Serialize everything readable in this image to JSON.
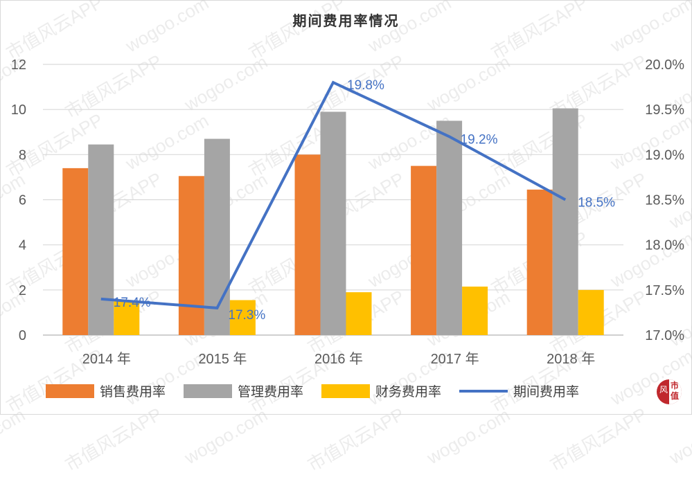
{
  "title": "期间费用率情况",
  "left_axis": {
    "ticks": [
      "12",
      "10",
      "8",
      "6",
      "4",
      "2",
      "0"
    ]
  },
  "right_axis": {
    "ticks": [
      "20.0%",
      "19.5%",
      "19.0%",
      "18.5%",
      "18.0%",
      "17.5%",
      "17.0%"
    ]
  },
  "x_labels": [
    "2014 年",
    "2015 年",
    "2016 年",
    "2017 年",
    "2018 年"
  ],
  "data_labels": [
    "17.4%",
    "17.3%",
    "19.8%",
    "19.2%",
    "18.5%"
  ],
  "legend": {
    "items": [
      {
        "label": "销售费用率",
        "color": "#ed7d31",
        "kind": "bar"
      },
      {
        "label": "管理费用率",
        "color": "#a5a5a5",
        "kind": "bar"
      },
      {
        "label": "财务费用率",
        "color": "#ffc000",
        "kind": "bar"
      },
      {
        "label": "期间费用率",
        "color": "#4472c4",
        "kind": "line"
      }
    ]
  },
  "logo": {
    "left": "风",
    "right": "市值"
  },
  "watermarks": [
    "wogoo.com",
    "市值风云APP"
  ],
  "chart_data": {
    "type": "bar",
    "title": "期间费用率情况",
    "categories": [
      "2014 年",
      "2015 年",
      "2016 年",
      "2017 年",
      "2018 年"
    ],
    "series": [
      {
        "name": "销售费用率",
        "type": "bar",
        "axis": "left",
        "color": "#ed7d31",
        "values": [
          7.4,
          7.05,
          8.0,
          7.5,
          6.45
        ]
      },
      {
        "name": "管理费用率",
        "type": "bar",
        "axis": "left",
        "color": "#a5a5a5",
        "values": [
          8.45,
          8.7,
          9.9,
          9.5,
          10.05
        ]
      },
      {
        "name": "财务费用率",
        "type": "bar",
        "axis": "left",
        "color": "#ffc000",
        "values": [
          1.5,
          1.55,
          1.9,
          2.15,
          2.0
        ]
      },
      {
        "name": "期间费用率",
        "type": "line",
        "axis": "right",
        "color": "#4472c4",
        "values": [
          17.4,
          17.3,
          19.8,
          19.2,
          18.5
        ],
        "labels": [
          "17.4%",
          "17.3%",
          "19.8%",
          "19.2%",
          "18.5%"
        ]
      }
    ],
    "ylim": [
      0,
      12
    ],
    "y_ticks": [
      0,
      2,
      4,
      6,
      8,
      10,
      12
    ],
    "y2lim": [
      17.0,
      20.0
    ],
    "y2_ticks": [
      "17.0%",
      "17.5%",
      "18.0%",
      "18.5%",
      "19.0%",
      "19.5%",
      "20.0%"
    ],
    "xlabel": "",
    "ylabel": "",
    "y2label": "",
    "grid": true,
    "legend_position": "bottom"
  }
}
